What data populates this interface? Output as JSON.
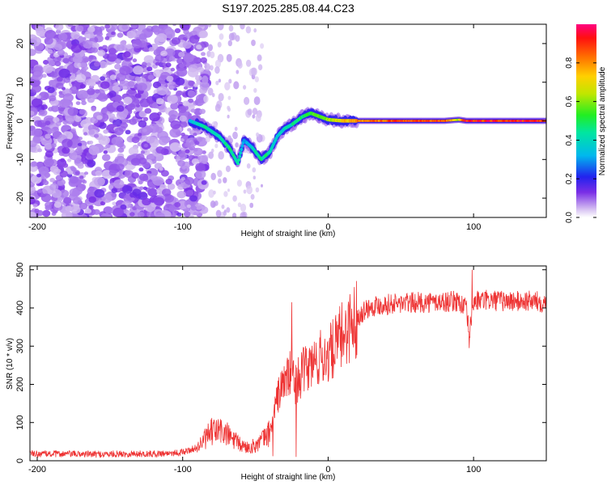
{
  "title": "S197.2025.285.08.44.C23",
  "chart_data": [
    {
      "type": "heatmap",
      "title": "S197.2025.285.08.44.C23",
      "xlabel": "Height of straight line (km)",
      "ylabel": "Frequency (Hz)",
      "xlim": [
        -205,
        150
      ],
      "ylim": [
        -25,
        25
      ],
      "xticks": [
        "-200",
        "-100",
        "0",
        "100"
      ],
      "xtick_values": [
        -200,
        -100,
        0,
        100
      ],
      "yticks": [
        "-20",
        "-10",
        "0",
        "10",
        "20"
      ],
      "ytick_values": [
        -20,
        -10,
        0,
        10,
        20
      ],
      "colorbar": {
        "label": "Normalized spectral amplitude",
        "range": [
          0,
          1
        ],
        "ticks": [
          "0.0",
          "0.2",
          "0.4",
          "0.6",
          "0.8"
        ],
        "tick_values": [
          0,
          0.2,
          0.4,
          0.6,
          0.8
        ]
      },
      "ridge": {
        "description": "dominant frequency track",
        "x": [
          -95,
          -85,
          -75,
          -68,
          -62,
          -58,
          -52,
          -46,
          -40,
          -35,
          -30,
          -25,
          -18,
          -12,
          -5,
          0,
          10,
          20,
          40,
          60,
          80,
          90,
          95,
          100,
          120,
          150
        ],
        "y": [
          0,
          -1.5,
          -4,
          -7,
          -11,
          -5,
          -7,
          -10,
          -8,
          -4,
          -2,
          -1,
          1,
          2,
          1,
          0.3,
          0,
          0,
          0,
          0,
          0,
          0.3,
          0,
          0,
          0,
          0
        ],
        "amplitude": [
          0.35,
          0.45,
          0.4,
          0.5,
          0.45,
          0.3,
          0.4,
          0.5,
          0.45,
          0.35,
          0.4,
          0.45,
          0.5,
          0.55,
          0.6,
          0.65,
          0.75,
          0.85,
          0.9,
          0.95,
          0.92,
          0.7,
          0.95,
          0.95,
          0.95,
          0.95
        ]
      },
      "noise_region_x": [
        -205,
        -90
      ]
    },
    {
      "type": "line",
      "title": "",
      "xlabel": "Height of straight line (km)",
      "ylabel": "SNR (10 * v/v)",
      "xlim": [
        -205,
        150
      ],
      "ylim": [
        0,
        510
      ],
      "xticks": [
        "-200",
        "-100",
        "0",
        "100"
      ],
      "xtick_values": [
        -200,
        -100,
        0,
        100
      ],
      "yticks": [
        "0",
        "100",
        "200",
        "300",
        "400",
        "500"
      ],
      "ytick_values": [
        0,
        100,
        200,
        300,
        400,
        500
      ],
      "color": "#ee3333",
      "series": [
        {
          "name": "SNR",
          "x": [
            -205,
            -180,
            -160,
            -140,
            -120,
            -110,
            -100,
            -95,
            -90,
            -85,
            -80,
            -75,
            -70,
            -65,
            -60,
            -55,
            -50,
            -45,
            -40,
            -38,
            -35,
            -30,
            -25,
            -22,
            -20,
            -15,
            -10,
            -5,
            0,
            5,
            10,
            15,
            20,
            25,
            30,
            40,
            50,
            60,
            70,
            80,
            90,
            95,
            97,
            100,
            110,
            120,
            130,
            140,
            150
          ],
          "y": [
            18,
            18,
            17,
            18,
            18,
            20,
            22,
            28,
            35,
            55,
            75,
            80,
            70,
            55,
            40,
            35,
            40,
            55,
            75,
            110,
            165,
            210,
            230,
            200,
            220,
            240,
            255,
            270,
            275,
            300,
            330,
            355,
            375,
            395,
            405,
            410,
            412,
            414,
            415,
            416,
            418,
            395,
            330,
            418,
            420,
            418,
            417,
            418,
            415
          ],
          "spikes": [
            {
              "x": -25,
              "y": 415
            },
            {
              "x": -38,
              "y": 12
            },
            {
              "x": -22,
              "y": 10
            },
            {
              "x": 99,
              "y": 500
            },
            {
              "x": 97,
              "y": 295
            }
          ]
        }
      ]
    }
  ]
}
